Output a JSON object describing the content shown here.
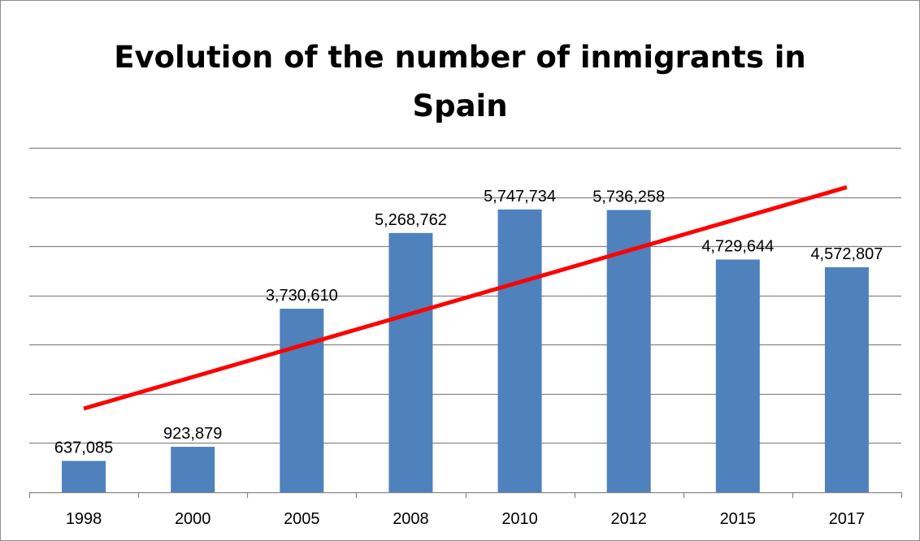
{
  "chart_data": {
    "type": "bar",
    "title_lines": [
      "Evolution of the number of inmigrants in",
      "Spain"
    ],
    "categories": [
      "1998",
      "2000",
      "2005",
      "2008",
      "2010",
      "2012",
      "2015",
      "2017"
    ],
    "values": [
      637085,
      923879,
      3730610,
      5268762,
      5747734,
      5736258,
      4729644,
      4572807
    ],
    "value_labels": [
      "637,085",
      "923,879",
      "3,730,610",
      "5,268,762",
      "5,747,734",
      "5,736,258",
      "4,729,644",
      "4,572,807"
    ],
    "ylim": [
      0,
      7000000
    ],
    "y_gridline_step": 1000000,
    "grid": true,
    "legend": "none",
    "trendline": {
      "type": "linear",
      "color": "#ff0000",
      "start_value": 1700000,
      "end_value": 6200000
    },
    "colors": {
      "bar": "#4f81bd",
      "gridline": "#868686",
      "axis": "#868686"
    }
  }
}
